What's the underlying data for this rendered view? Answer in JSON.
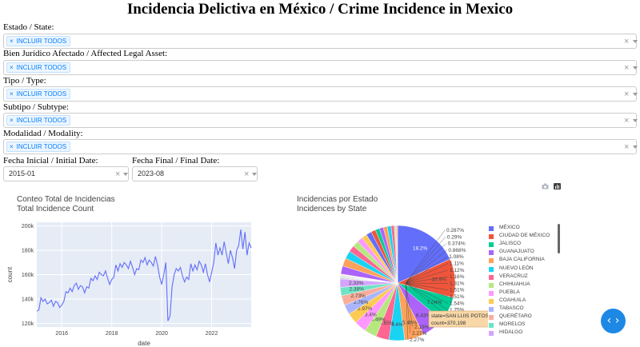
{
  "title": "Incidencia Delictiva en México / Crime Incidence in Mexico",
  "filters": [
    {
      "label": "Estado / State:",
      "chip": "INCLUIR TODOS"
    },
    {
      "label": "Bien Jurídico Afectado / Affected Legal Asset:",
      "chip": "INCLUIR TODOS"
    },
    {
      "label": "Tipo / Type:",
      "chip": "INCLUIR TODOS"
    },
    {
      "label": "Subtipo / Subtype:",
      "chip": "INCLUIR TODOS"
    },
    {
      "label": "Modalidad / Modality:",
      "chip": "INCLUIR TODOS"
    }
  ],
  "dates": {
    "initial_label": "Fecha Inicial / Initial Date:",
    "initial_value": "2015-01",
    "final_label": "Fecha Final / Final Date:",
    "final_value": "2023-08"
  },
  "icons": {
    "chip_remove": "×",
    "clear": "×",
    "camera": "camera-icon",
    "plotly": "plotly-logo-icon",
    "nav": "‹ ›"
  },
  "colors": {
    "accent": "#1e88e5",
    "chip_text": "#007eff",
    "line": "#636efa",
    "plot_bg": "#e5ecf6"
  },
  "line_chart": {
    "title": "Conteo Total de Incidencias\nTotal Incidence Count"
  },
  "pie_chart": {
    "title": "Incidencias por Estado\nIncidences by State",
    "hover": {
      "line1": "state=SAN LUIS POTOSI",
      "line2": "count=370,198"
    },
    "pct_labels": [
      "0.287%",
      "0.29%",
      "0.374%",
      "0.868%",
      "1.08%",
      "1.11%",
      "1.12%",
      "1.16%",
      "1.31%",
      "1.51%",
      "1.51%",
      "1.54%",
      "1.75%",
      "1.82%",
      "2.19%",
      "2.27%",
      "2.27%"
    ]
  },
  "chart_data": [
    {
      "type": "line",
      "title": "Conteo Total de Incidencias\nTotal Incidence Count",
      "xlabel": "date",
      "ylabel": "count",
      "xlim": [
        "2015-01",
        "2023-08"
      ],
      "ylim": [
        117000,
        203000
      ],
      "x_ticks": [
        "2016",
        "2018",
        "2020",
        "2022"
      ],
      "y_ticks": [
        "120k",
        "140k",
        "160k",
        "180k",
        "200k"
      ],
      "grid": true,
      "series": [
        {
          "x": [
            "2015-01",
            "2015-02",
            "2015-03",
            "2015-04",
            "2015-05",
            "2015-06",
            "2015-07",
            "2015-08",
            "2015-09",
            "2015-10",
            "2015-11",
            "2015-12",
            "2016-01",
            "2016-02",
            "2016-03",
            "2016-04",
            "2016-05",
            "2016-06",
            "2016-07",
            "2016-08",
            "2016-09",
            "2016-10",
            "2016-11",
            "2016-12",
            "2017-01",
            "2017-02",
            "2017-03",
            "2017-04",
            "2017-05",
            "2017-06",
            "2017-07",
            "2017-08",
            "2017-09",
            "2017-10",
            "2017-11",
            "2017-12",
            "2018-01",
            "2018-02",
            "2018-03",
            "2018-04",
            "2018-05",
            "2018-06",
            "2018-07",
            "2018-08",
            "2018-09",
            "2018-10",
            "2018-11",
            "2018-12",
            "2019-01",
            "2019-02",
            "2019-03",
            "2019-04",
            "2019-05",
            "2019-06",
            "2019-07",
            "2019-08",
            "2019-09",
            "2019-10",
            "2019-11",
            "2019-12",
            "2020-01",
            "2020-02",
            "2020-03",
            "2020-04",
            "2020-05",
            "2020-06",
            "2020-07",
            "2020-08",
            "2020-09",
            "2020-10",
            "2020-11",
            "2020-12",
            "2021-01",
            "2021-02",
            "2021-03",
            "2021-04",
            "2021-05",
            "2021-06",
            "2021-07",
            "2021-08",
            "2021-09",
            "2021-10",
            "2021-11",
            "2021-12",
            "2022-01",
            "2022-02",
            "2022-03",
            "2022-04",
            "2022-05",
            "2022-06",
            "2022-07",
            "2022-08",
            "2022-09",
            "2022-10",
            "2022-11",
            "2022-12",
            "2023-01",
            "2023-02",
            "2023-03",
            "2023-04",
            "2023-05",
            "2023-06",
            "2023-07",
            "2023-08"
          ],
          "values": [
            130000,
            131000,
            141000,
            138000,
            140000,
            136000,
            137000,
            139000,
            134000,
            138000,
            137000,
            133000,
            135000,
            138000,
            146000,
            145000,
            149000,
            146000,
            151000,
            153000,
            148000,
            151000,
            150000,
            145000,
            150000,
            149000,
            157000,
            155000,
            159000,
            156000,
            162000,
            160000,
            159000,
            163000,
            157000,
            152000,
            156000,
            158000,
            168000,
            163000,
            169000,
            166000,
            170000,
            168000,
            165000,
            171000,
            166000,
            160000,
            165000,
            164000,
            172000,
            170000,
            174000,
            168000,
            172000,
            170000,
            167000,
            175000,
            168000,
            158000,
            152000,
            160000,
            170000,
            122000,
            126000,
            150000,
            160000,
            165000,
            163000,
            166000,
            159000,
            154000,
            158000,
            156000,
            169000,
            163000,
            168000,
            164000,
            171000,
            168000,
            162000,
            169000,
            160000,
            154000,
            162000,
            170000,
            186000,
            176000,
            182000,
            176000,
            187000,
            178000,
            169000,
            180000,
            174000,
            165000,
            180000,
            184000,
            197000,
            181000,
            195000,
            176000,
            186000,
            182000
          ]
        }
      ]
    },
    {
      "type": "pie",
      "title": "Incidencias por Estado\nIncidences by State",
      "categories": [
        "MÉXICO",
        "CIUDAD DE MÉXICO",
        "JALISCO",
        "GUANAJUATO",
        "BAJA CALIFORNIA",
        "NUEVO LEÓN",
        "VERACRUZ",
        "CHIHUAHUA",
        "PUEBLA",
        "COAHUILA",
        "TABASCO",
        "QUERÉTARO",
        "MORELOS",
        "HIDALGO"
      ],
      "legend_position": "right",
      "slice_labels": [
        "18.2%",
        "10.9%",
        "7.04%",
        "6.43%",
        "5.46%",
        "4.4%",
        "3.65%",
        "3.49%",
        "3.4%",
        "2.97%",
        "2.76%",
        "2.73%",
        "2.38%",
        "2.33%"
      ],
      "values": [
        18.2,
        10.9,
        7.04,
        6.43,
        5.46,
        4.4,
        3.65,
        3.49,
        3.4,
        2.97,
        2.76,
        2.73,
        2.38,
        2.33
      ],
      "colors": [
        "#636efa",
        "#ef553b",
        "#00cc96",
        "#ab63fa",
        "#ffa15a",
        "#19d3f3",
        "#ff6692",
        "#b6e880",
        "#ff97ff",
        "#fecb52",
        "#aab5fc",
        "#f8ae9c",
        "#6fe3c6",
        "#d4a4fd"
      ],
      "small_slices": [
        0.287,
        0.29,
        0.374,
        0.868,
        1.08,
        1.11,
        1.12,
        1.16,
        1.31,
        1.51,
        1.51,
        1.54,
        1.75,
        1.82,
        2.19,
        2.27,
        2.27
      ]
    }
  ]
}
